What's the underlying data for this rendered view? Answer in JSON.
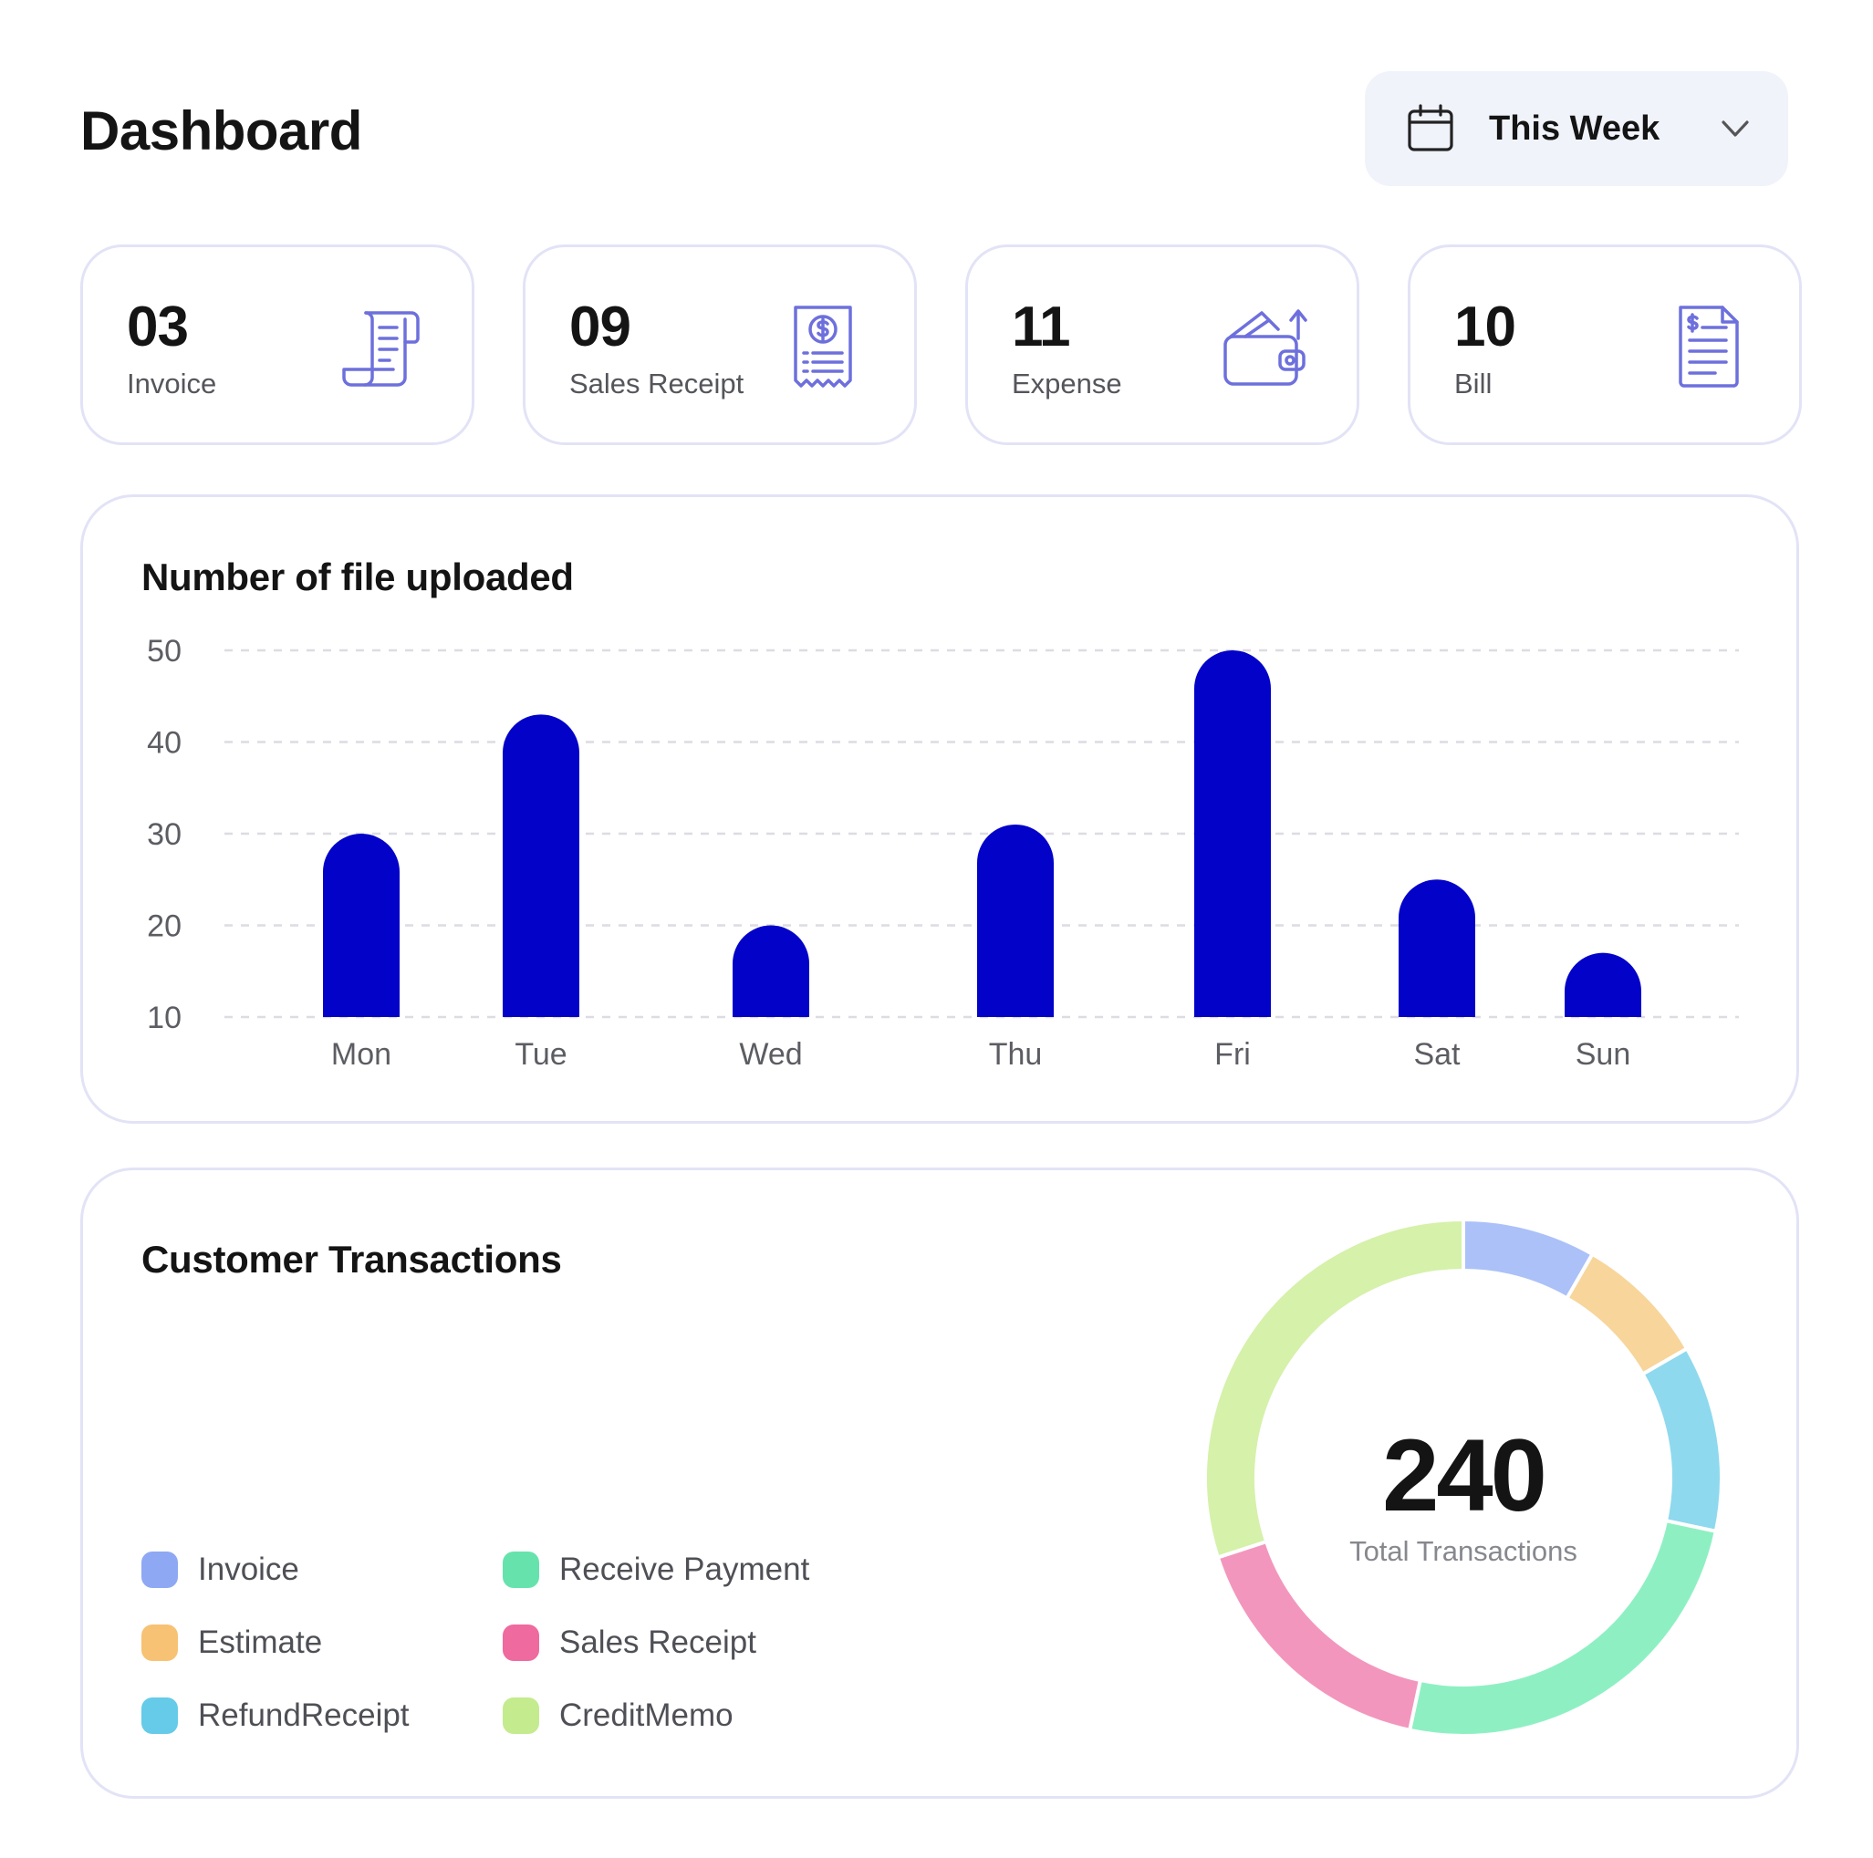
{
  "header": {
    "title": "Dashboard"
  },
  "period": {
    "label": "This Week",
    "icon": "calendar-icon",
    "chevron": "chevron-down-icon"
  },
  "stats": [
    {
      "value": "03",
      "label": "Invoice",
      "icon": "invoice-scroll-icon"
    },
    {
      "value": "09",
      "label": "Sales Receipt",
      "icon": "receipt-dollar-icon"
    },
    {
      "value": "11",
      "label": "Expense",
      "icon": "wallet-icon"
    },
    {
      "value": "10",
      "label": "Bill",
      "icon": "bill-document-icon"
    }
  ],
  "colors": {
    "accent": "#0202c9",
    "icon": "#6d70dc",
    "card_border": "#e2e3f6",
    "grid": "#dcdce2",
    "select_bg": "#f1f3fb"
  },
  "uploads": {
    "title": "Number of file uploaded",
    "chart_data": {
      "type": "bar",
      "title": "Number of file uploaded",
      "categories": [
        "Mon",
        "Tue",
        "Wed",
        "Thu",
        "Fri",
        "Sat",
        "Sun"
      ],
      "values": [
        30,
        43,
        20,
        31,
        50,
        25,
        17
      ],
      "ylim": [
        10,
        50
      ],
      "yticks": [
        10,
        20,
        30,
        40,
        50
      ],
      "grid": true,
      "bar_color": "#0202c9",
      "xlabel": "",
      "ylabel": ""
    }
  },
  "transactions": {
    "title": "Customer Transactions",
    "total": "240",
    "total_label": "Total Transactions",
    "legend": [
      {
        "label": "Invoice",
        "color": "#8fa8f4"
      },
      {
        "label": "Receive Payment",
        "color": "#66e3ac"
      },
      {
        "label": "Estimate",
        "color": "#f7c274"
      },
      {
        "label": "Sales Receipt",
        "color": "#ee6a9f"
      },
      {
        "label": "RefundReceipt",
        "color": "#65cbe8"
      },
      {
        "label": "CreditMemo",
        "color": "#c4eb8e"
      }
    ],
    "chart_data": {
      "type": "pie",
      "donut": true,
      "total": 240,
      "slices": [
        {
          "label": "Invoice",
          "value": 20,
          "color": "#abc1f8"
        },
        {
          "label": "Estimate",
          "value": 20,
          "color": "#f7d59b"
        },
        {
          "label": "RefundReceipt",
          "value": 28,
          "color": "#8ed9ee"
        },
        {
          "label": "Receive Payment",
          "value": 60,
          "color": "#8ef0c2"
        },
        {
          "label": "Sales Receipt",
          "value": 40,
          "color": "#f396bd"
        },
        {
          "label": "CreditMemo",
          "value": 72,
          "color": "#d5f1aa"
        }
      ]
    }
  }
}
